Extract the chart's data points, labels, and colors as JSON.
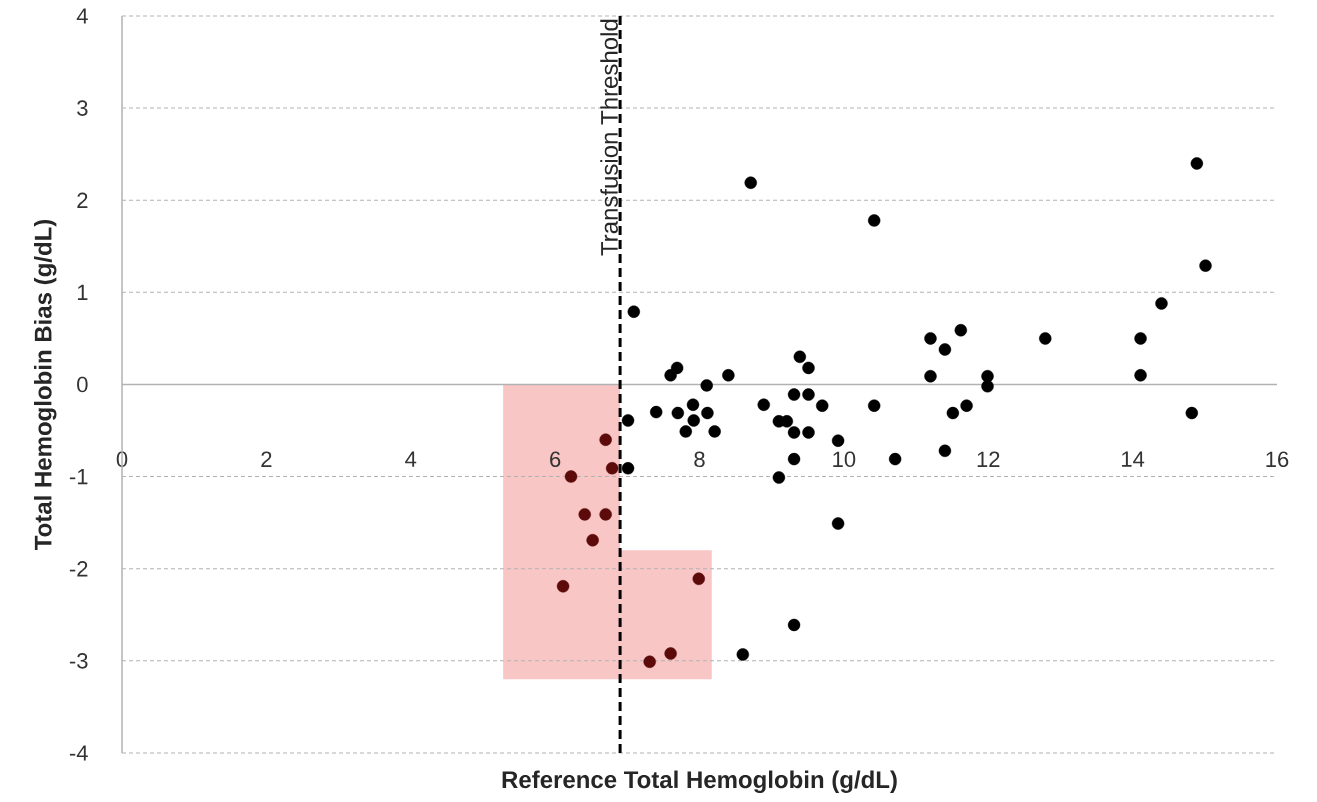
{
  "chart_data": {
    "type": "scatter",
    "xlabel": "Reference Total Hemoglobin (g/dL)",
    "ylabel": "Total Hemoglobin Bias (g/dL)",
    "xlim": [
      0,
      16
    ],
    "ylim": [
      -4,
      4
    ],
    "xticks": [
      0,
      2,
      4,
      6,
      8,
      10,
      12,
      14,
      16
    ],
    "yticks": [
      -4,
      -3,
      -2,
      -1,
      0,
      1,
      2,
      3,
      4
    ],
    "grid": "y",
    "ref_lines": [
      {
        "axis": "x",
        "value": 6.9,
        "label": "Transfusion Threshold",
        "color": "#000000",
        "line_style": "dashed"
      }
    ],
    "series": [
      {
        "type": "area",
        "color": "#f9c6c6",
        "x": [
          5.28,
          5.28,
          6.9,
          6.9,
          8.17,
          8.17
        ],
        "values": [
          -3.2,
          0,
          0,
          -1.8,
          -1.8,
          -3.2
        ]
      },
      {
        "color": "#000000",
        "x": [
          7.09,
          7.01,
          7.01,
          7.4,
          7.6,
          7.69,
          7.7,
          7.91,
          8.11,
          7.92,
          7.81,
          8.21,
          8.1,
          8.4,
          8.89,
          8.71,
          10.42,
          9.1,
          9.21,
          9.31,
          9.31,
          9.39,
          9.51,
          9.51,
          9.51,
          9.7,
          9.31,
          9.1,
          9.92,
          9.92,
          10.42,
          10.71,
          9.31,
          8.6,
          11.2,
          11.4,
          11.62,
          11.2,
          11.51,
          11.7,
          11.4,
          11.99,
          11.99,
          15.01,
          14.4,
          12.79,
          14.11,
          14.11,
          14.82,
          14.89
        ],
        "values": [
          0.79,
          -0.39,
          -0.91,
          -0.3,
          0.1,
          0.18,
          -0.31,
          -0.22,
          -0.31,
          -0.39,
          -0.51,
          -0.51,
          -0.01,
          0.1,
          -0.22,
          2.19,
          1.78,
          -0.4,
          -0.4,
          -0.11,
          -0.52,
          0.3,
          0.18,
          -0.11,
          -0.52,
          -0.23,
          -0.81,
          -1.01,
          -0.61,
          -1.51,
          -0.23,
          -0.81,
          -2.61,
          -2.93,
          0.5,
          0.38,
          0.59,
          0.09,
          -0.31,
          -0.23,
          -0.72,
          0.09,
          -0.02,
          1.29,
          0.88,
          0.5,
          0.5,
          0.1,
          -0.31,
          2.4
        ]
      },
      {
        "color": "#5c0a0a",
        "x": [
          6.7,
          6.79,
          6.22,
          6.41,
          6.7,
          6.52,
          6.11,
          7.99,
          7.6,
          7.31
        ],
        "values": [
          -0.6,
          -0.91,
          -1.0,
          -1.41,
          -1.41,
          -1.69,
          -2.19,
          -2.11,
          -2.92,
          -3.01
        ]
      }
    ]
  }
}
